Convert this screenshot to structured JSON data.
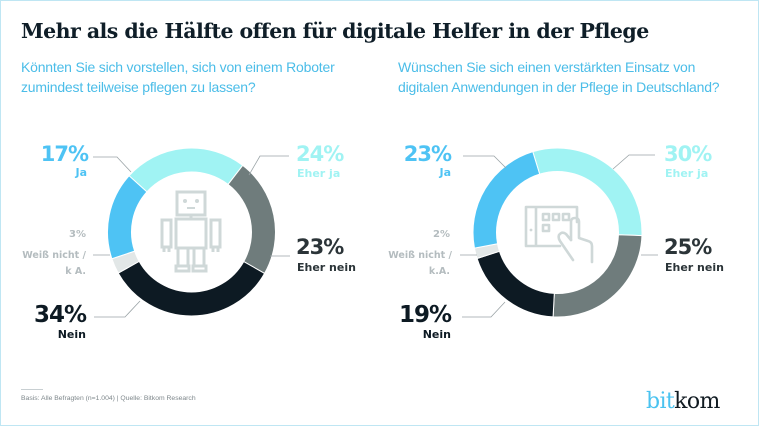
{
  "title": "Mehr als die Hälfte offen für digitale Helfer in der Pflege",
  "colors": {
    "ja": "#4ec3f4",
    "eher_ja": "#a0f3f3",
    "eher_nein": "#6f7c7c",
    "nein": "#0d1a23",
    "weiss_nicht": "#e2e7e7",
    "title": "#0f1e28",
    "subtitle": "#4bbde8",
    "icon": "#cfd8d8",
    "connector": "#9aa3a6"
  },
  "chart_data": [
    {
      "type": "pie",
      "variant": "donut",
      "title": "Könnten Sie sich vorstellen, sich von einem Roboter zumindest teilweise pflegen zu lassen?",
      "center_icon": "robot-icon",
      "unit": "%",
      "slices": [
        {
          "key": "eher_ja",
          "label": "Eher ja",
          "value": 24
        },
        {
          "key": "eher_nein",
          "label": "Eher nein",
          "value": 23
        },
        {
          "key": "nein",
          "label": "Nein",
          "value": 34
        },
        {
          "key": "weiss_nicht",
          "label": "Weiß nicht / k A.",
          "value": 3
        },
        {
          "key": "ja",
          "label": "Ja",
          "value": 17
        }
      ]
    },
    {
      "type": "pie",
      "variant": "donut",
      "title": "Wünschen Sie sich einen verstärkten Einsatz von digitalen Anwendungen in der Pflege in Deutschland?",
      "center_icon": "tablet-touch-icon",
      "unit": "%",
      "slices": [
        {
          "key": "eher_ja",
          "label": "Eher ja",
          "value": 30
        },
        {
          "key": "eher_nein",
          "label": "Eher nein",
          "value": 25
        },
        {
          "key": "nein",
          "label": "Nein",
          "value": 19
        },
        {
          "key": "weiss_nicht",
          "label": "Weiß nicht / k.A.",
          "value": 2
        },
        {
          "key": "ja",
          "label": "Ja",
          "value": 23
        }
      ]
    }
  ],
  "labels": {
    "c1": {
      "ja_pct": "17%",
      "ja_lbl": "Ja",
      "eher_ja_pct": "24%",
      "eher_ja_lbl": "Eher ja",
      "eher_nein_pct": "23%",
      "eher_nein_lbl": "Eher nein",
      "nein_pct": "34%",
      "nein_lbl": "Nein",
      "wn_pct": "3%",
      "wn_lbl1": "Weiß nicht /",
      "wn_lbl2": "k A."
    },
    "c2": {
      "ja_pct": "23%",
      "ja_lbl": "Ja",
      "eher_ja_pct": "30%",
      "eher_ja_lbl": "Eher ja",
      "eher_nein_pct": "25%",
      "eher_nein_lbl": "Eher nein",
      "nein_pct": "19%",
      "nein_lbl": "Nein",
      "wn_pct": "2%",
      "wn_lbl1": "Weiß nicht /",
      "wn_lbl2": "k.A."
    }
  },
  "footer": {
    "source": "Basis: Alle Befragten (n=1.004) | Quelle: Bitkom Research"
  },
  "logo": {
    "part1": "bit",
    "part2": "kom"
  }
}
